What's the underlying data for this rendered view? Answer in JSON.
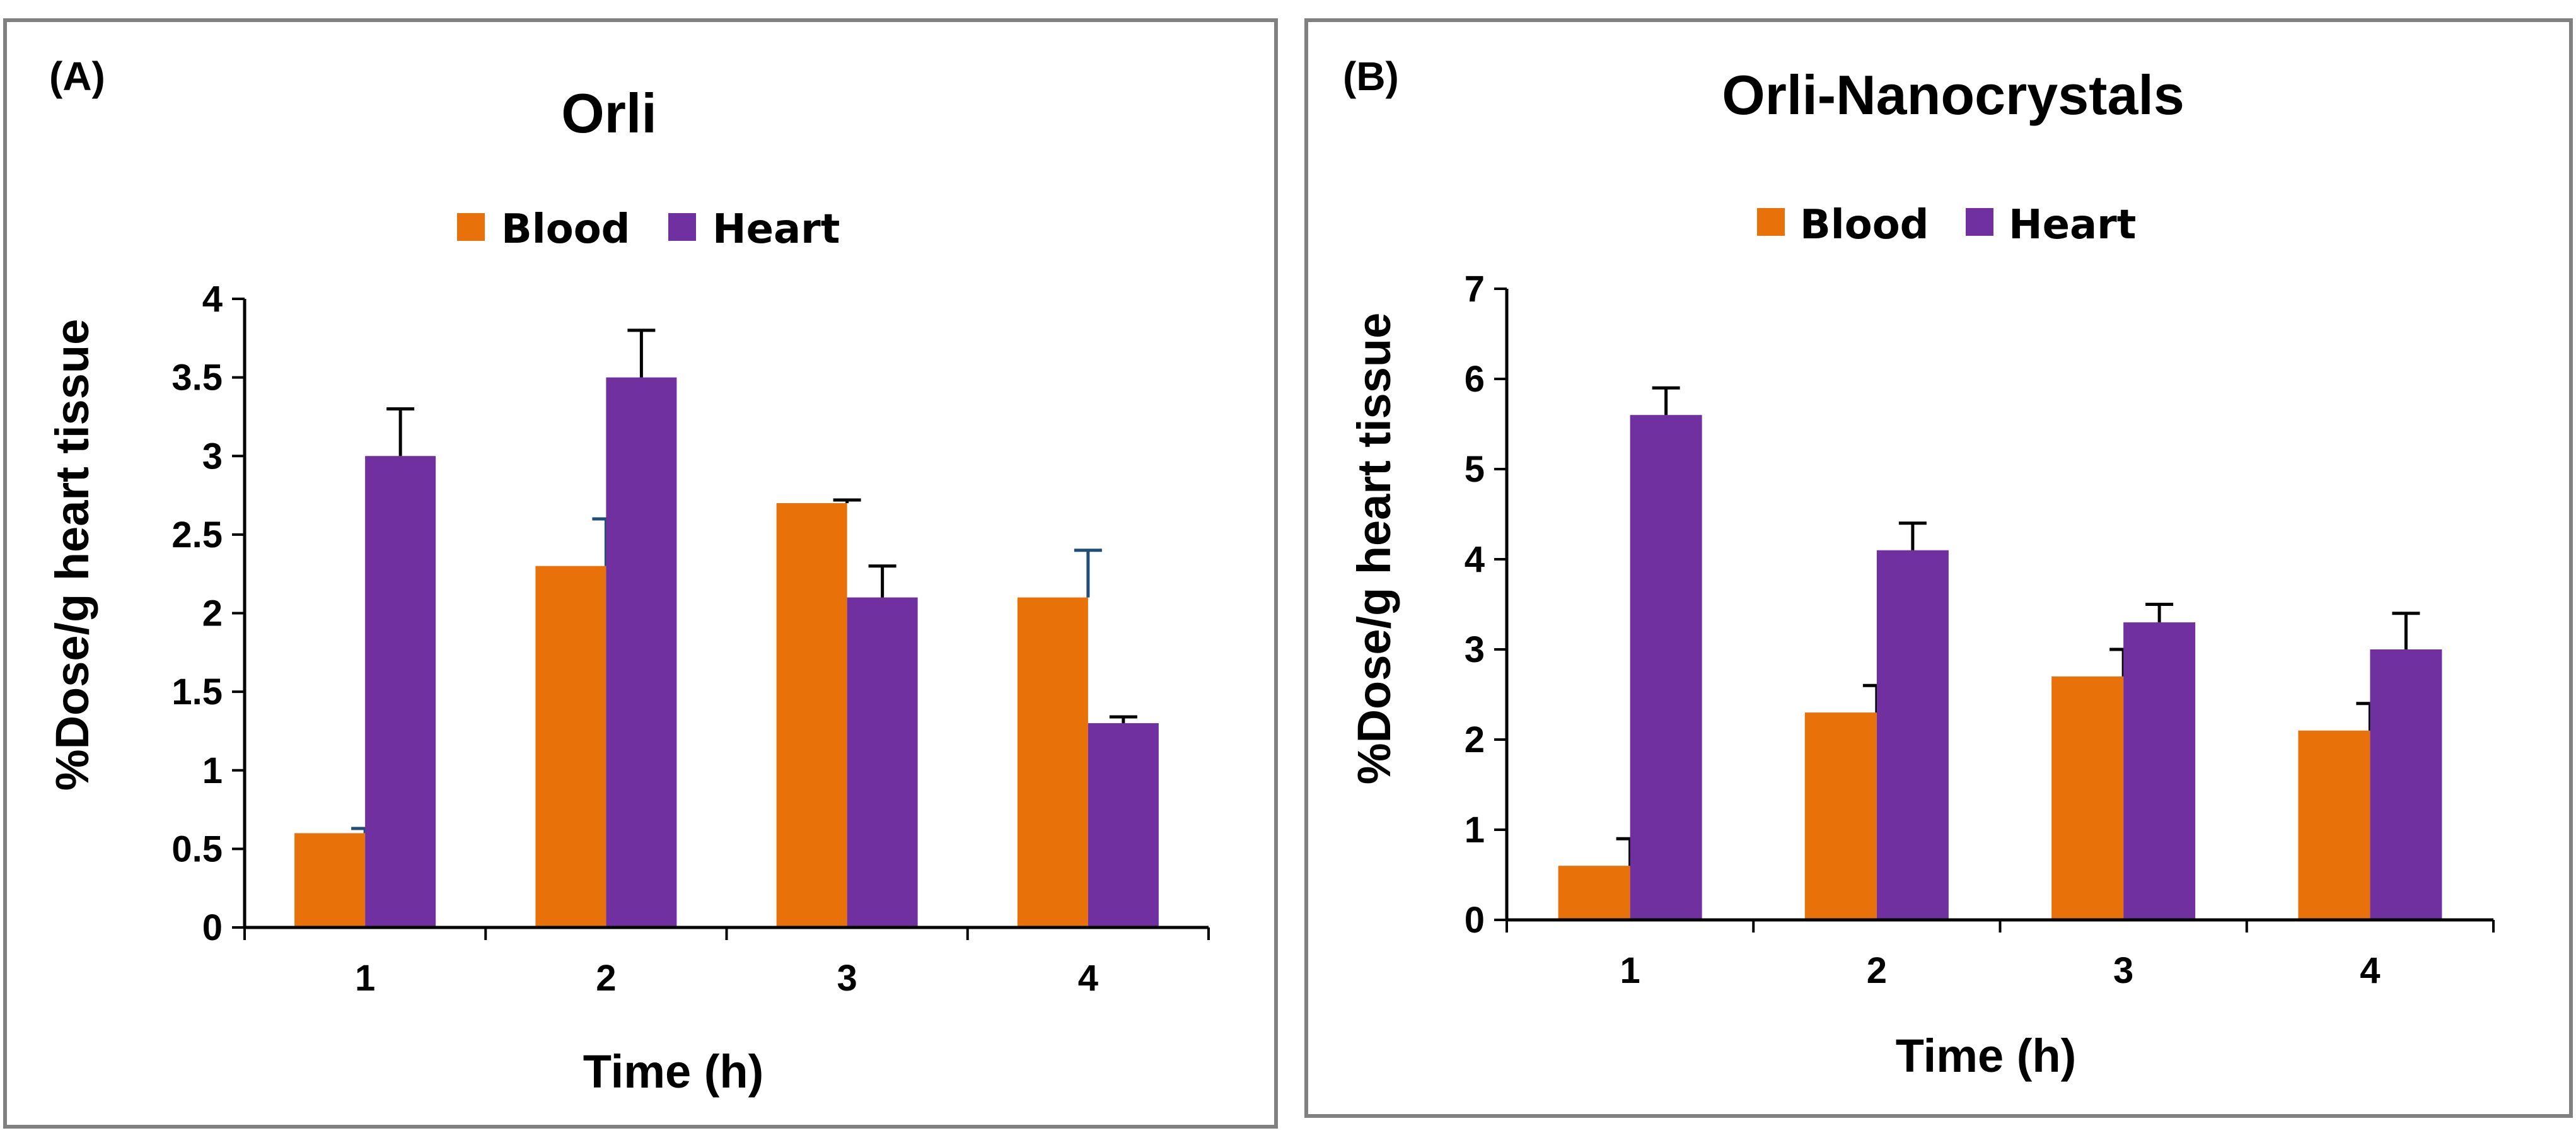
{
  "colors": {
    "blood": "#E8710A",
    "heart": "#7030A0",
    "frame": "#808080",
    "error_bar_dark": "#000000",
    "error_bar_blue": "#1F4E79"
  },
  "chart_data": [
    {
      "panel_label": "(A)",
      "type": "bar",
      "title": "Orli",
      "xlabel": "Time (h)",
      "ylabel": "%Dose/g heart tissue",
      "categories": [
        "1",
        "2",
        "3",
        "4"
      ],
      "ylim": [
        0,
        4
      ],
      "yticks": [
        "0",
        "0.5",
        "1",
        "1.5",
        "2",
        "2.5",
        "3",
        "3.5",
        "4"
      ],
      "ytick_values": [
        0,
        0.5,
        1,
        1.5,
        2,
        2.5,
        3,
        3.5,
        4
      ],
      "legend_position": "top-center",
      "grid": false,
      "series": [
        {
          "name": "Blood",
          "values": [
            0.6,
            2.3,
            2.7,
            2.1
          ],
          "errors": [
            0.03,
            0.3,
            0.02,
            0.3
          ]
        },
        {
          "name": "Heart",
          "values": [
            3.0,
            3.5,
            2.1,
            1.3
          ],
          "errors": [
            0.3,
            0.3,
            0.2,
            0.04
          ]
        }
      ]
    },
    {
      "panel_label": "(B)",
      "type": "bar",
      "title": "Orli-Nanocrystals",
      "xlabel": "Time (h)",
      "ylabel": "%Dose/g heart tissue",
      "categories": [
        "1",
        "2",
        "3",
        "4"
      ],
      "ylim": [
        0,
        7
      ],
      "yticks": [
        "0",
        "1",
        "2",
        "3",
        "4",
        "5",
        "6",
        "7"
      ],
      "ytick_values": [
        0,
        1,
        2,
        3,
        4,
        5,
        6,
        7
      ],
      "legend_position": "top-center",
      "grid": false,
      "series": [
        {
          "name": "Blood",
          "values": [
            0.6,
            2.3,
            2.7,
            2.1
          ],
          "errors": [
            0.3,
            0.3,
            0.3,
            0.3
          ]
        },
        {
          "name": "Heart",
          "values": [
            5.6,
            4.1,
            3.3,
            3.0
          ],
          "errors": [
            0.3,
            0.3,
            0.2,
            0.4
          ]
        }
      ]
    }
  ]
}
